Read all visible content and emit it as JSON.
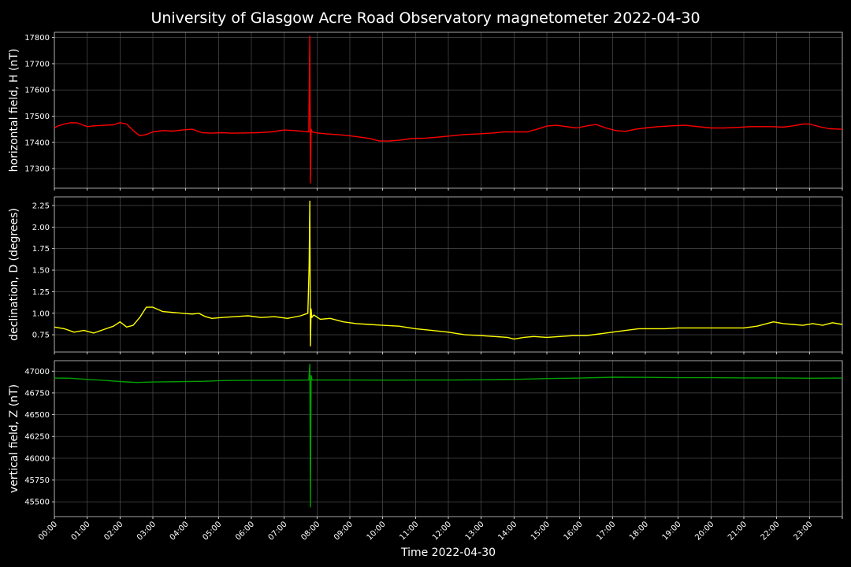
{
  "chart_data": {
    "type": "line",
    "title": "University of Glasgow Acre Road Observatory magnetometer 2022-04-30",
    "xlabel": "Time 2022-04-30",
    "x_unit": "hours",
    "xlim": [
      0,
      24
    ],
    "x_tick_labels": [
      "00:00",
      "01:00",
      "02:00",
      "03:00",
      "04:00",
      "05:00",
      "06:00",
      "07:00",
      "08:00",
      "09:00",
      "10:00",
      "11:00",
      "12:00",
      "13:00",
      "14:00",
      "15:00",
      "16:00",
      "17:00",
      "18:00",
      "19:00",
      "20:00",
      "21:00",
      "22:00",
      "23:00"
    ],
    "grid": true,
    "panels": [
      {
        "ylabel": "horizontal field, H (nT)",
        "color": "#ff0000",
        "ylim": [
          17225,
          17820
        ],
        "yticks": [
          17300,
          17400,
          17500,
          17600,
          17700,
          17800
        ],
        "ytick_labels": [
          "17300",
          "17400",
          "17500",
          "17600",
          "17700",
          "17800"
        ],
        "x": [
          0,
          0.1,
          0.3,
          0.5,
          0.7,
          0.9,
          1.0,
          1.2,
          1.5,
          1.8,
          2.0,
          2.2,
          2.4,
          2.6,
          2.8,
          3.0,
          3.3,
          3.6,
          3.9,
          4.2,
          4.5,
          4.8,
          5.1,
          5.4,
          5.8,
          6.2,
          6.6,
          7.0,
          7.3,
          7.6,
          7.75,
          7.78,
          7.8,
          7.82,
          7.85,
          8.0,
          8.3,
          8.6,
          9.0,
          9.3,
          9.6,
          9.9,
          10.2,
          10.5,
          10.9,
          11.3,
          11.7,
          12.1,
          12.5,
          12.9,
          13.3,
          13.7,
          14.1,
          14.4,
          14.7,
          15.0,
          15.3,
          15.6,
          15.9,
          16.2,
          16.5,
          16.8,
          17.1,
          17.4,
          17.7,
          18.0,
          18.4,
          18.8,
          19.2,
          19.6,
          20.0,
          20.4,
          20.8,
          21.2,
          21.6,
          21.9,
          22.2,
          22.5,
          22.8,
          23.0,
          23.3,
          23.6,
          24.0
        ],
        "y": [
          17455,
          17462,
          17470,
          17475,
          17474,
          17465,
          17460,
          17463,
          17465,
          17467,
          17475,
          17470,
          17445,
          17425,
          17430,
          17440,
          17445,
          17443,
          17447,
          17450,
          17437,
          17435,
          17437,
          17435,
          17436,
          17437,
          17440,
          17447,
          17445,
          17442,
          17440,
          17805,
          17245,
          17450,
          17440,
          17436,
          17432,
          17430,
          17425,
          17420,
          17415,
          17405,
          17405,
          17408,
          17415,
          17416,
          17420,
          17425,
          17430,
          17432,
          17435,
          17440,
          17440,
          17440,
          17450,
          17462,
          17465,
          17460,
          17455,
          17462,
          17468,
          17455,
          17445,
          17442,
          17450,
          17455,
          17460,
          17463,
          17465,
          17460,
          17455,
          17455,
          17457,
          17460,
          17460,
          17460,
          17458,
          17463,
          17470,
          17470,
          17460,
          17452,
          17450
        ]
      },
      {
        "ylabel": "declination, D (degrees)",
        "color": "#ffff00",
        "ylim": [
          0.55,
          2.35
        ],
        "yticks": [
          0.75,
          1.0,
          1.25,
          1.5,
          1.75,
          2.0,
          2.25
        ],
        "ytick_labels": [
          "0.75",
          "1.00",
          "1.25",
          "1.50",
          "1.75",
          "2.00",
          "2.25"
        ],
        "x": [
          0,
          0.3,
          0.6,
          0.9,
          1.2,
          1.5,
          1.8,
          2.0,
          2.2,
          2.4,
          2.6,
          2.8,
          3.0,
          3.3,
          3.6,
          3.9,
          4.2,
          4.4,
          4.6,
          4.8,
          5.1,
          5.5,
          5.9,
          6.3,
          6.7,
          7.1,
          7.5,
          7.72,
          7.76,
          7.78,
          7.8,
          7.82,
          7.84,
          7.9,
          8.1,
          8.4,
          8.8,
          9.2,
          9.6,
          10.0,
          10.5,
          11.0,
          11.5,
          12.0,
          12.5,
          13.0,
          13.4,
          13.8,
          14.0,
          14.3,
          14.6,
          15.0,
          15.4,
          15.8,
          16.2,
          16.6,
          17.0,
          17.4,
          17.8,
          18.2,
          18.6,
          19.0,
          19.4,
          19.8,
          20.2,
          20.6,
          21.0,
          21.4,
          21.7,
          21.9,
          22.2,
          22.5,
          22.8,
          23.1,
          23.4,
          23.7,
          24.0
        ],
        "y": [
          0.84,
          0.82,
          0.78,
          0.8,
          0.77,
          0.81,
          0.85,
          0.9,
          0.84,
          0.86,
          0.95,
          1.07,
          1.07,
          1.02,
          1.01,
          1.0,
          0.99,
          1.0,
          0.96,
          0.94,
          0.95,
          0.96,
          0.97,
          0.95,
          0.96,
          0.94,
          0.97,
          1.0,
          1.55,
          2.3,
          0.62,
          1.05,
          0.95,
          0.98,
          0.93,
          0.94,
          0.9,
          0.88,
          0.87,
          0.86,
          0.85,
          0.82,
          0.8,
          0.78,
          0.75,
          0.74,
          0.73,
          0.72,
          0.7,
          0.72,
          0.73,
          0.72,
          0.73,
          0.74,
          0.74,
          0.76,
          0.78,
          0.8,
          0.82,
          0.82,
          0.82,
          0.83,
          0.83,
          0.83,
          0.83,
          0.83,
          0.83,
          0.85,
          0.88,
          0.9,
          0.88,
          0.87,
          0.86,
          0.88,
          0.86,
          0.89,
          0.87
        ]
      },
      {
        "ylabel": "vertical field, Z (nT)",
        "color": "#00a000",
        "ylim": [
          45330,
          47120
        ],
        "yticks": [
          45500,
          45750,
          46000,
          46250,
          46500,
          46750,
          47000
        ],
        "ytick_labels": [
          "45500",
          "45750",
          "46000",
          "46250",
          "46500",
          "46750",
          "47000"
        ],
        "x": [
          0,
          0.5,
          1.0,
          1.5,
          2.0,
          2.5,
          3.0,
          3.5,
          4.0,
          4.5,
          5.0,
          5.5,
          6.0,
          6.5,
          7.0,
          7.5,
          7.75,
          7.78,
          7.8,
          7.82,
          7.85,
          8.2,
          9.0,
          10.0,
          11.0,
          12.0,
          13.0,
          14.0,
          15.0,
          16.0,
          17.0,
          18.0,
          19.0,
          20.0,
          21.0,
          22.0,
          23.0,
          24.0
        ],
        "y": [
          46920,
          46918,
          46905,
          46895,
          46880,
          46870,
          46875,
          46878,
          46880,
          46882,
          46890,
          46893,
          46895,
          46895,
          46896,
          46897,
          46898,
          47080,
          45440,
          46950,
          46898,
          46898,
          46898,
          46897,
          46898,
          46898,
          46900,
          46905,
          46915,
          46920,
          46930,
          46928,
          46925,
          46925,
          46922,
          46922,
          46918,
          46920
        ]
      }
    ]
  }
}
